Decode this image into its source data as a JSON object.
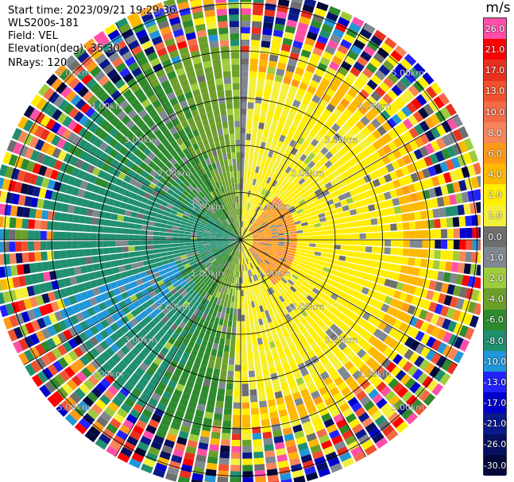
{
  "header": {
    "start_time": "Start time: 2023/09/21 19:29:36",
    "device": "WLS200s-181",
    "field": "Field: VEL",
    "elevation": "Elevation(deg): 35.30",
    "nrays": "NRays: 120"
  },
  "colorbar": {
    "unit": "m/s",
    "levels": [
      {
        "label": "26.0",
        "color": "#ff4fa8"
      },
      {
        "label": "21.0",
        "color": "#ff0000"
      },
      {
        "label": "17.0",
        "color": "#e8301f"
      },
      {
        "label": "13.0",
        "color": "#f2512f"
      },
      {
        "label": "10.0",
        "color": "#f46b47"
      },
      {
        "label": "8.0",
        "color": "#f7865a"
      },
      {
        "label": "6.0",
        "color": "#ff9a17"
      },
      {
        "label": "4.0",
        "color": "#ffb800"
      },
      {
        "label": "2.0",
        "color": "#ffee00"
      },
      {
        "label": "1.0",
        "color": "#f4ef3a"
      },
      {
        "label": "0.0",
        "color": "#6e6e6e"
      },
      {
        "label": "-1.0",
        "color": "#7f8790"
      },
      {
        "label": "-2.0",
        "color": "#9fcc3c"
      },
      {
        "label": "-4.0",
        "color": "#6c9f2a"
      },
      {
        "label": "-6.0",
        "color": "#2d8a2d"
      },
      {
        "label": "-8.0",
        "color": "#1f8f6f"
      },
      {
        "label": "-10.0",
        "color": "#2196d8"
      },
      {
        "label": "-13.0",
        "color": "#2222ff"
      },
      {
        "label": "-17.0",
        "color": "#0000cc"
      },
      {
        "label": "-21.0",
        "color": "#0a1a8a"
      },
      {
        "label": "-26.0",
        "color": "#071060"
      },
      {
        "label": "-30.0",
        "color": "#02083a"
      }
    ]
  },
  "chart_data": {
    "type": "heatmap",
    "projection": "polar-ppi",
    "field": "VEL",
    "units": "m/s",
    "n_rays": 120,
    "range_rings_km": [
      1.0,
      2.0,
      3.0,
      4.0,
      5.0
    ],
    "range_ring_labels": [
      "1.00km",
      "2.00km",
      "3.00km",
      "4.00km",
      "5.00km"
    ],
    "max_range_km": 5.3,
    "spoke_step_deg": 30,
    "value_range": [
      -30.0,
      26.0
    ],
    "regions": [
      {
        "sector": "north-east",
        "range_km": [
          0.5,
          4.0
        ],
        "velocity_ms": 2.0
      },
      {
        "sector": "south-east",
        "range_km": [
          0.5,
          4.0
        ],
        "velocity_ms": 2.0
      },
      {
        "sector": "east",
        "range_km": [
          0.2,
          1.2
        ],
        "velocity_ms": 8.0
      },
      {
        "sector": "west",
        "range_km": [
          0.5,
          4.0
        ],
        "velocity_ms": -3.0
      },
      {
        "sector": "south-west",
        "range_km": [
          1.5,
          4.0
        ],
        "velocity_ms": -6.0
      },
      {
        "sector": "all",
        "range_km": [
          4.0,
          5.3
        ],
        "velocity_ms": "noise"
      }
    ]
  }
}
